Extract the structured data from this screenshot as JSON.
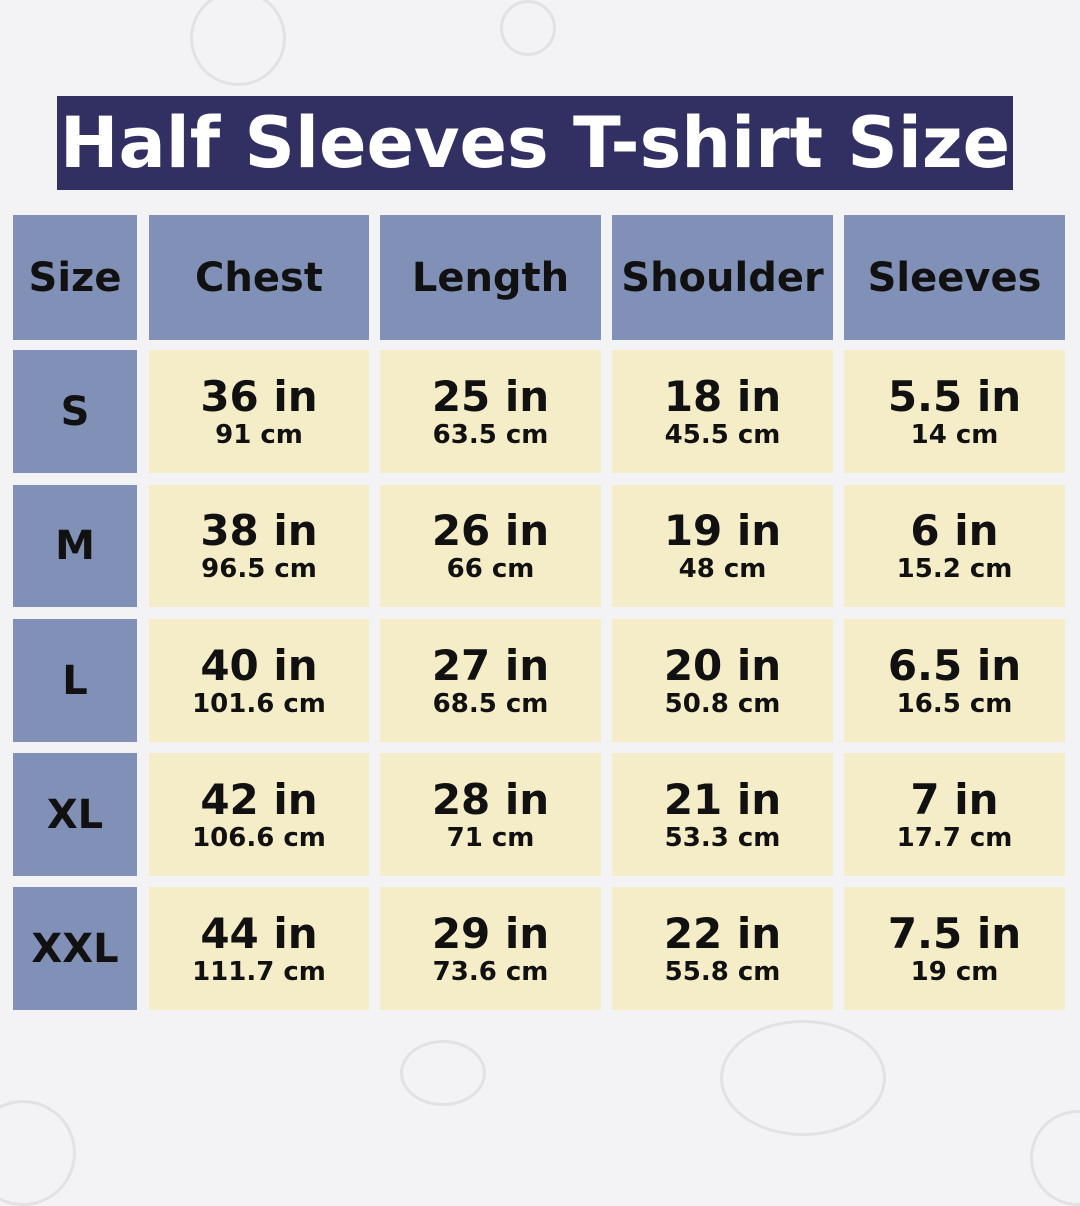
{
  "title": "Half Sleeves T-shirt Size",
  "colors": {
    "title_bg": "#322f62",
    "header_bg": "#8190b6",
    "cell_bg": "#f5ecc8",
    "background": "#f3f3f5"
  },
  "headers": [
    "Size",
    "Chest",
    "Length",
    "Shoulder",
    "Sleeves"
  ],
  "rows": [
    {
      "size": "S",
      "values": [
        {
          "in": "36 in",
          "cm": "91 cm"
        },
        {
          "in": "25 in",
          "cm": "63.5 cm"
        },
        {
          "in": "18 in",
          "cm": "45.5 cm"
        },
        {
          "in": "5.5 in",
          "cm": "14 cm"
        }
      ]
    },
    {
      "size": "M",
      "values": [
        {
          "in": "38 in",
          "cm": "96.5 cm"
        },
        {
          "in": "26 in",
          "cm": "66 cm"
        },
        {
          "in": "19 in",
          "cm": "48 cm"
        },
        {
          "in": "6 in",
          "cm": "15.2 cm"
        }
      ]
    },
    {
      "size": "L",
      "values": [
        {
          "in": "40 in",
          "cm": "101.6 cm"
        },
        {
          "in": "27 in",
          "cm": "68.5 cm"
        },
        {
          "in": "20 in",
          "cm": "50.8 cm"
        },
        {
          "in": "6.5 in",
          "cm": "16.5 cm"
        }
      ]
    },
    {
      "size": "XL",
      "values": [
        {
          "in": "42 in",
          "cm": "106.6 cm"
        },
        {
          "in": "28 in",
          "cm": "71 cm"
        },
        {
          "in": "21 in",
          "cm": "53.3 cm"
        },
        {
          "in": "7 in",
          "cm": "17.7 cm"
        }
      ]
    },
    {
      "size": "XXL",
      "values": [
        {
          "in": "44 in",
          "cm": "111.7 cm"
        },
        {
          "in": "29 in",
          "cm": "73.6 cm"
        },
        {
          "in": "22 in",
          "cm": "55.8 cm"
        },
        {
          "in": "7.5 in",
          "cm": "19 cm"
        }
      ]
    }
  ]
}
